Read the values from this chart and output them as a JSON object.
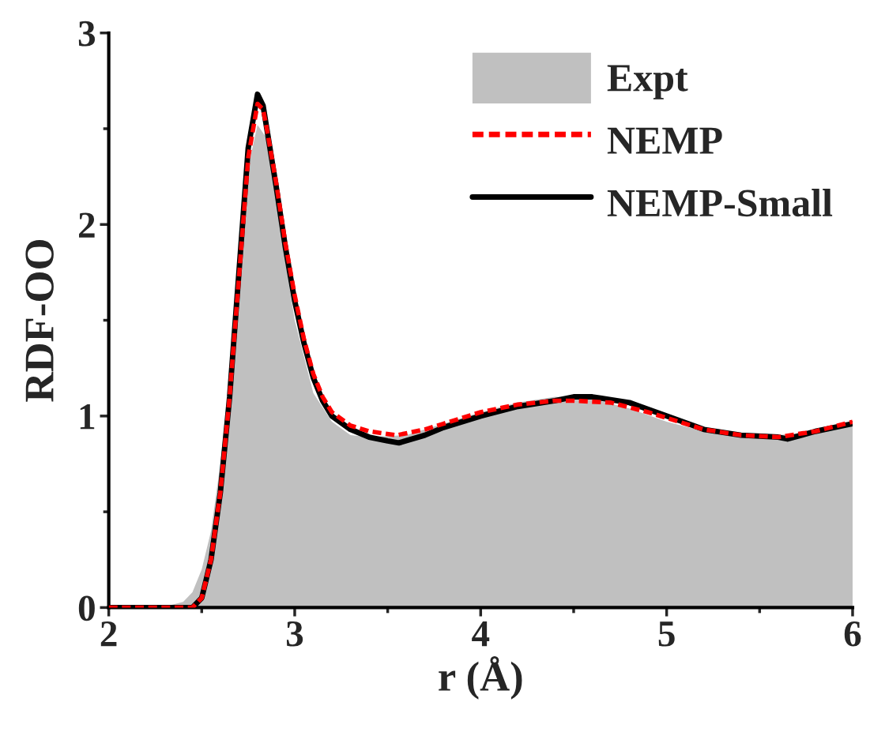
{
  "chart_data": {
    "type": "line",
    "xlabel": "r (Å)",
    "ylabel": "RDF-OO",
    "xlim": [
      2,
      6
    ],
    "xticks": [
      2,
      {
        "value": 2.5,
        "label": null
      },
      3,
      {
        "value": 3.5,
        "label": null
      },
      4,
      {
        "value": 4.5,
        "label": null
      },
      5,
      {
        "value": 5.5,
        "label": null
      },
      6
    ],
    "ylim": [
      0,
      3
    ],
    "yticks": [
      0,
      {
        "value": 0.5,
        "label": null
      },
      1,
      {
        "value": 1.5,
        "label": null
      },
      2,
      {
        "value": 2.5,
        "label": null
      },
      3
    ],
    "grid": false,
    "legend": "top right",
    "marker": "none",
    "series": [
      {
        "name": "Expt",
        "type": "area",
        "color": "#c0c0c0",
        "x": [
          2,
          2.3,
          2.4,
          2.45,
          2.5,
          2.55,
          2.6,
          2.65,
          2.7,
          2.75,
          2.8,
          2.85,
          2.9,
          2.95,
          3.0,
          3.1,
          3.2,
          3.3,
          3.4,
          3.6,
          3.8,
          4.0,
          4.2,
          4.4,
          4.6,
          4.8,
          5.0,
          5.2,
          5.4,
          5.6,
          5.8,
          6.0
        ],
        "values": [
          0,
          0.005,
          0.03,
          0.08,
          0.2,
          0.4,
          0.75,
          1.2,
          1.7,
          2.3,
          2.52,
          2.45,
          2.15,
          1.8,
          1.5,
          1.12,
          0.97,
          0.9,
          0.89,
          0.9,
          0.96,
          1.02,
          1.07,
          1.1,
          1.09,
          1.04,
          0.97,
          0.92,
          0.9,
          0.9,
          0.92,
          0.95
        ]
      },
      {
        "name": "NEMP",
        "color": "#ff0000",
        "line_style": "dashed",
        "x": [
          2,
          2.45,
          2.5,
          2.55,
          2.6,
          2.65,
          2.7,
          2.75,
          2.8,
          2.83,
          2.85,
          2.9,
          2.95,
          3.0,
          3.05,
          3.1,
          3.15,
          3.2,
          3.3,
          3.4,
          3.55,
          3.7,
          3.8,
          4.0,
          4.2,
          4.4,
          4.5,
          4.7,
          4.9,
          5.0,
          5.2,
          5.4,
          5.6,
          5.8,
          6.0
        ],
        "values": [
          0,
          0,
          0.05,
          0.25,
          0.6,
          1.1,
          1.72,
          2.35,
          2.63,
          2.6,
          2.5,
          2.22,
          1.9,
          1.63,
          1.4,
          1.22,
          1.1,
          1.02,
          0.95,
          0.92,
          0.9,
          0.93,
          0.96,
          1.02,
          1.06,
          1.08,
          1.08,
          1.07,
          1.02,
          0.99,
          0.93,
          0.9,
          0.89,
          0.92,
          0.97
        ]
      },
      {
        "name": "NEMP-Small",
        "color": "#000000",
        "line_style": "solid",
        "x": [
          2,
          2.45,
          2.5,
          2.55,
          2.6,
          2.65,
          2.7,
          2.75,
          2.8,
          2.83,
          2.85,
          2.9,
          2.95,
          3.0,
          3.05,
          3.1,
          3.15,
          3.2,
          3.3,
          3.4,
          3.5,
          3.56,
          3.7,
          3.8,
          4.0,
          4.2,
          4.4,
          4.5,
          4.6,
          4.8,
          5.0,
          5.2,
          5.4,
          5.6,
          5.65,
          5.8,
          6.0
        ],
        "values": [
          0,
          0,
          0.05,
          0.25,
          0.6,
          1.1,
          1.75,
          2.4,
          2.68,
          2.62,
          2.5,
          2.2,
          1.88,
          1.6,
          1.38,
          1.2,
          1.08,
          1.0,
          0.93,
          0.89,
          0.87,
          0.86,
          0.9,
          0.94,
          1.0,
          1.05,
          1.08,
          1.1,
          1.1,
          1.07,
          1.0,
          0.93,
          0.9,
          0.89,
          0.88,
          0.92,
          0.96
        ]
      }
    ]
  }
}
